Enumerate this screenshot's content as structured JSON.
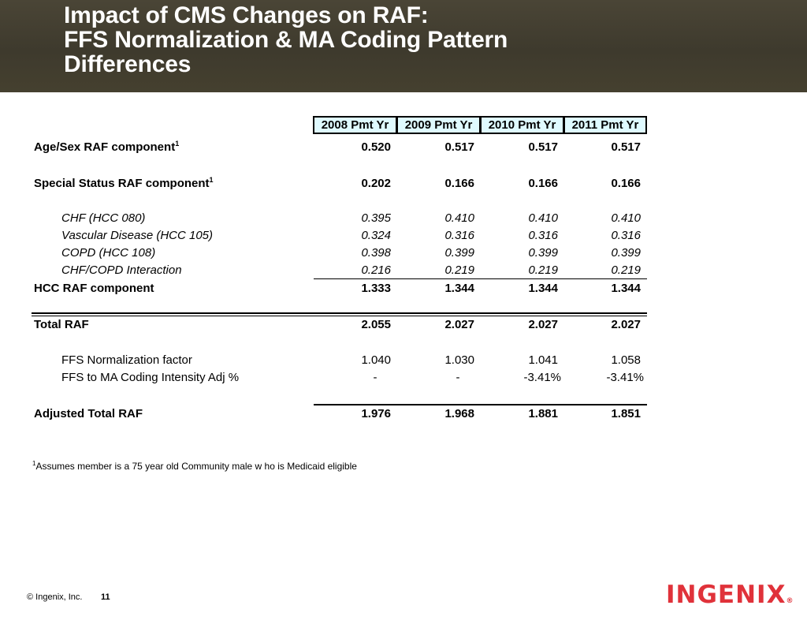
{
  "title": {
    "line1": "Impact of CMS Changes on RAF:",
    "line2": "FFS Normalization & MA Coding Pattern",
    "line3": "Differences"
  },
  "table": {
    "columns": [
      "2008 Pmt Yr",
      "2009 Pmt Yr",
      "2010 Pmt Yr",
      "2011 Pmt Yr"
    ],
    "rows": {
      "age_sex": {
        "label": "Age/Sex RAF component",
        "sup": "1",
        "values": [
          "0.520",
          "0.517",
          "0.517",
          "0.517"
        ]
      },
      "special_status": {
        "label": "Special Status RAF component",
        "sup": "1",
        "values": [
          "0.202",
          "0.166",
          "0.166",
          "0.166"
        ]
      },
      "chf": {
        "label": "CHF (HCC 080)",
        "values": [
          "0.395",
          "0.410",
          "0.410",
          "0.410"
        ]
      },
      "vascular": {
        "label": "Vascular Disease (HCC 105)",
        "values": [
          "0.324",
          "0.316",
          "0.316",
          "0.316"
        ]
      },
      "copd": {
        "label": "COPD (HCC 108)",
        "values": [
          "0.398",
          "0.399",
          "0.399",
          "0.399"
        ]
      },
      "chf_copd": {
        "label": "CHF/COPD Interaction",
        "values": [
          "0.216",
          "0.219",
          "0.219",
          "0.219"
        ]
      },
      "hcc": {
        "label": "HCC RAF component",
        "values": [
          "1.333",
          "1.344",
          "1.344",
          "1.344"
        ]
      },
      "total": {
        "label": "Total RAF",
        "values": [
          "2.055",
          "2.027",
          "2.027",
          "2.027"
        ]
      },
      "ffs_norm": {
        "label": "FFS Normalization factor",
        "values": [
          "1.040",
          "1.030",
          "1.041",
          "1.058"
        ]
      },
      "ffs_ma": {
        "label": "FFS to MA Coding Intensity Adj %",
        "values": [
          "-",
          "-",
          "-3.41%",
          "-3.41%"
        ]
      },
      "adjusted": {
        "label": "Adjusted Total RAF",
        "values": [
          "1.976",
          "1.968",
          "1.881",
          "1.851"
        ]
      }
    }
  },
  "footnote": {
    "sup": "1",
    "text": "Assumes member is a 75 year old Community male w ho is Medicaid eligible"
  },
  "footer": {
    "copyright": "© Ingenix, Inc.",
    "page": "11"
  },
  "logo": {
    "text": "INGENIX",
    "mark": "®"
  },
  "colors": {
    "header_bg": "#423d2f",
    "col_header_bg": "#dffaff",
    "logo": "#e0323a"
  }
}
